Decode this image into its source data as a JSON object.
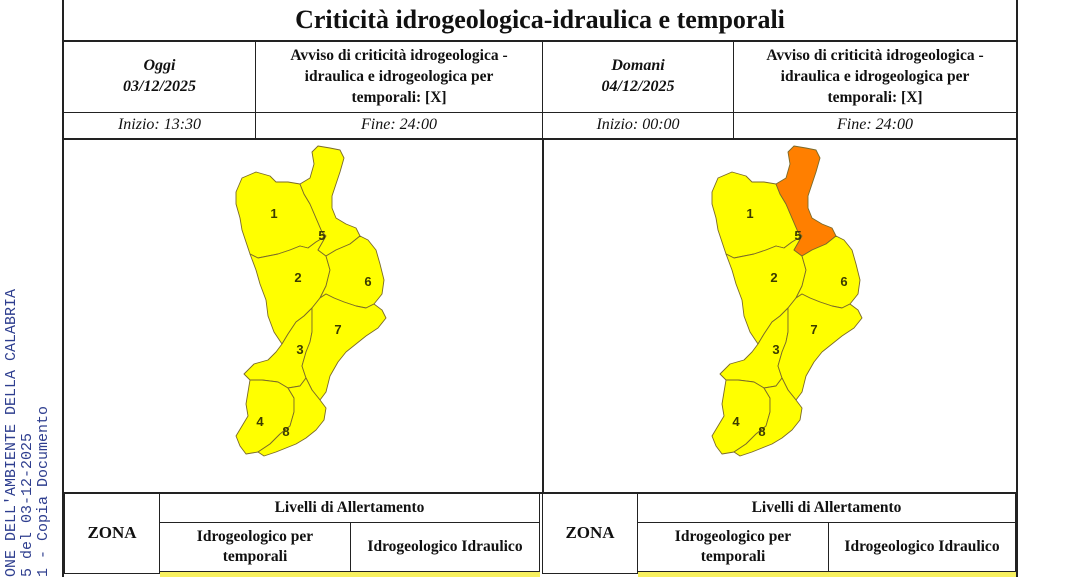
{
  "title": "Criticità idrogeologica-idraulica e temporali",
  "stamp": {
    "lines": [
      "ONE DELL'AMBIENTE DELLA CALABRIA",
      "5 del 03-12-2025",
      "1 - Copia Documento"
    ]
  },
  "today": {
    "day_label": "Oggi",
    "date": "03/12/2025",
    "avviso": [
      "Avviso di criticità idrogeologica -",
      "idraulica e idrogeologica per",
      "temporali: [X]"
    ],
    "start": "Inizio: 13:30",
    "end": "Fine: 24:00",
    "zone_levels": {
      "1": "yellow",
      "2": "yellow",
      "3": "yellow",
      "4": "yellow",
      "5": "yellow",
      "6": "yellow",
      "7": "yellow",
      "8": "yellow"
    }
  },
  "tomorrow": {
    "day_label": "Domani",
    "date": "04/12/2025",
    "avviso": [
      "Avviso di criticità idrogeologica -",
      "idraulica e idrogeologica per",
      "temporali: [X]"
    ],
    "start": "Inizio: 00:00",
    "end": "Fine: 24:00",
    "zone_levels": {
      "1": "yellow",
      "2": "yellow",
      "3": "yellow",
      "4": "yellow",
      "5": "orange",
      "6": "yellow",
      "7": "yellow",
      "8": "yellow"
    }
  },
  "zones": [
    "1",
    "2",
    "3",
    "4",
    "5",
    "6",
    "7",
    "8"
  ],
  "legend": {
    "zona": "ZONA",
    "livelli": "Livelli di Allertamento",
    "idro_temporali": [
      "Idrogeologico per",
      "temporali"
    ],
    "idro_idraulico": "Idrogeologico Idraulico"
  },
  "colors": {
    "yellow": "#ffff00",
    "orange": "#ff7f00",
    "border": "#7a6a2a",
    "strip": "#f7f060"
  }
}
